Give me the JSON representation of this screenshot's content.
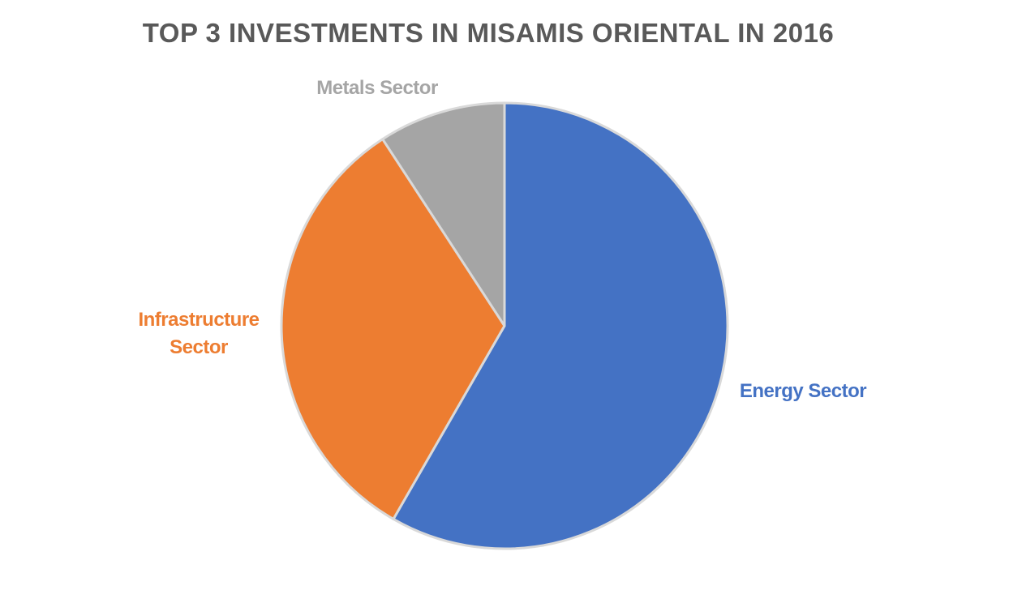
{
  "chart_data": {
    "type": "pie",
    "title": "TOP 3 INVESTMENTS IN MISAMIS ORIENTAL IN 2016",
    "categories": [
      "Energy Sector",
      "Infrastructure Sector",
      "Metals Sector"
    ],
    "values": [
      58.3,
      32.5,
      9.2
    ],
    "colors": [
      "#4472c4",
      "#ed7d31",
      "#a5a5a5"
    ]
  }
}
